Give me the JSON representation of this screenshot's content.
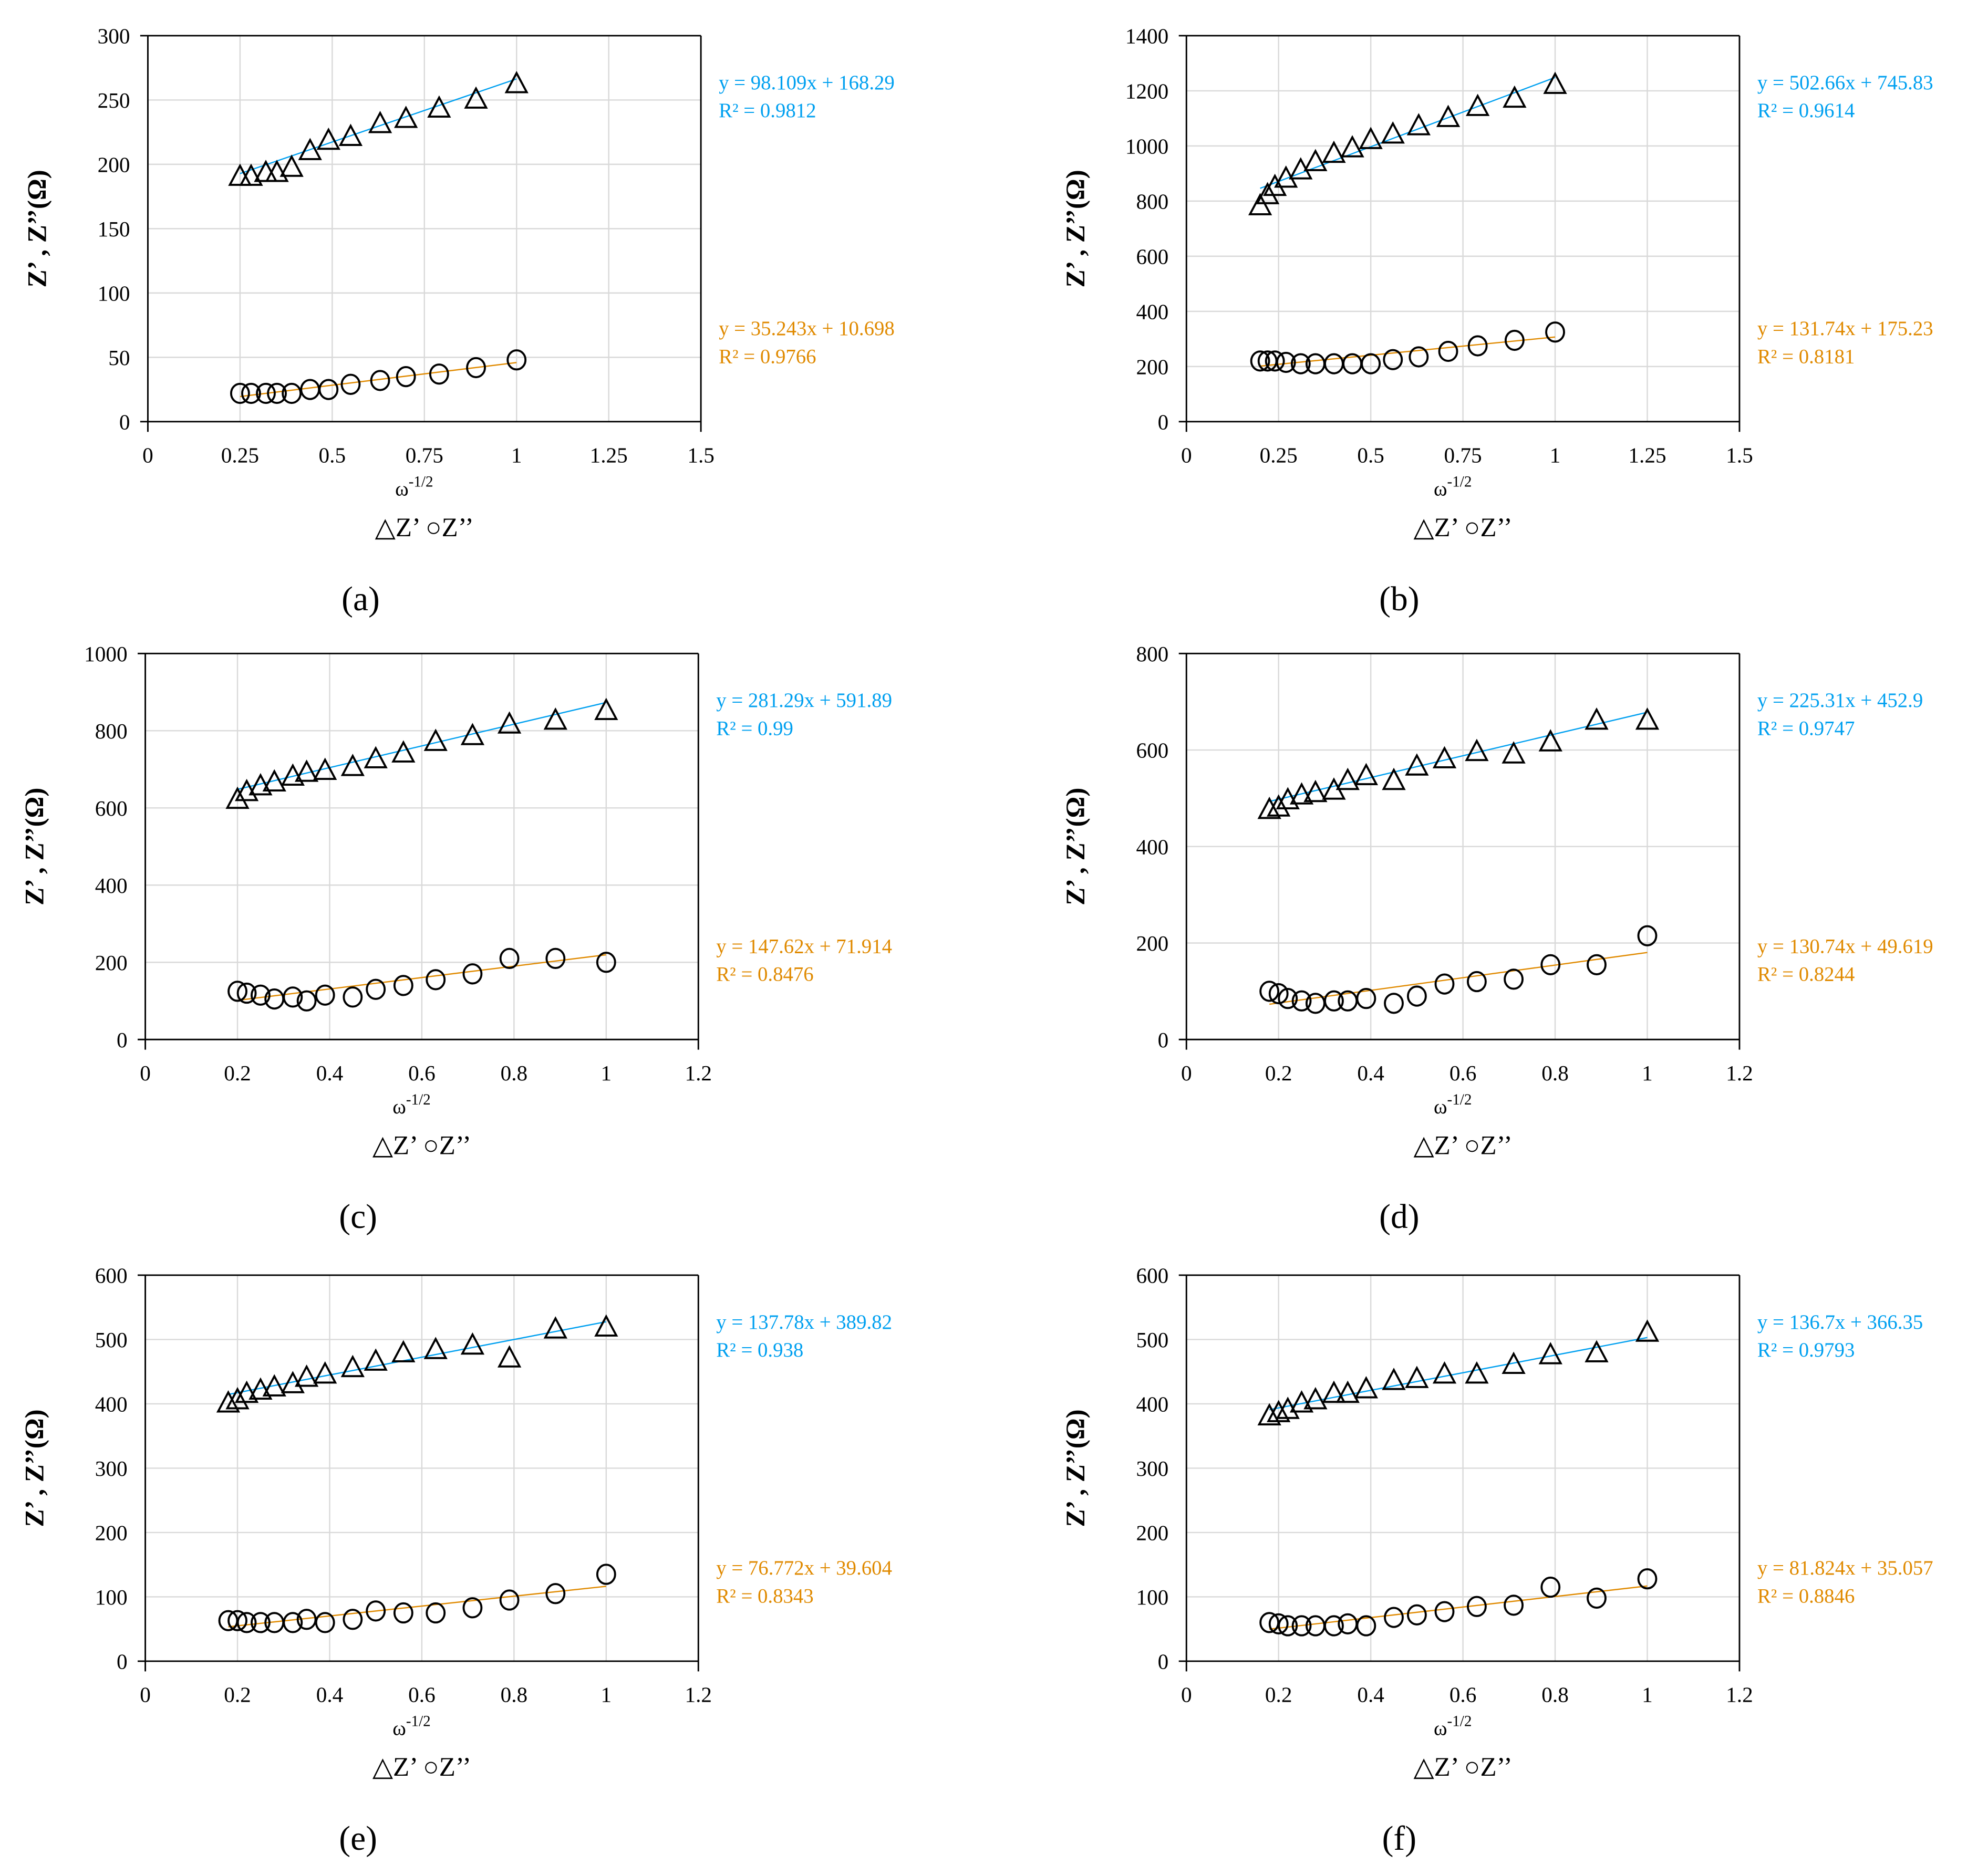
{
  "colors": {
    "fit_zprime": "#00A0F0",
    "fit_zdouble": "#E08A00",
    "grid": "#D9D9D9",
    "marker": "#000000"
  },
  "chart_data": [
    {
      "type": "scatter",
      "panel": "(a)",
      "ylabel": "Z’ , Z’’(Ω)",
      "xlabel": "ω",
      "xlabel_sup": "-1/2",
      "legend": "△Z’ ○Z’’",
      "xlim": [
        0,
        1.5
      ],
      "xticks": [
        "0",
        "0.25",
        "0.5",
        "0.75",
        "1",
        "1.25",
        "1.5"
      ],
      "ylim": [
        0,
        300
      ],
      "yticks": [
        "0",
        "50",
        "100",
        "150",
        "200",
        "250",
        "300"
      ],
      "x": [
        0.25,
        0.28,
        0.32,
        0.35,
        0.39,
        0.44,
        0.49,
        0.55,
        0.63,
        0.7,
        0.79,
        0.89,
        1.0
      ],
      "series": [
        {
          "name": "Z’",
          "marker": "triangle",
          "values": [
            190,
            190,
            193,
            193,
            197,
            210,
            218,
            221,
            231,
            235,
            243,
            250,
            262
          ],
          "fit": {
            "slope": 98.109,
            "intercept": 168.29,
            "eq": "y = 98.109x + 168.29",
            "r2": "R² = 0.9812"
          }
        },
        {
          "name": "Z’’",
          "marker": "circle",
          "values": [
            22,
            22,
            22,
            22,
            22,
            25,
            25,
            29,
            32,
            35,
            37,
            42,
            48
          ],
          "fit": {
            "slope": 35.243,
            "intercept": 10.698,
            "eq": "y = 35.243x + 10.698",
            "r2": "R² = 0.9766"
          }
        }
      ]
    },
    {
      "type": "scatter",
      "panel": "(b)",
      "ylabel": "Z’ , Z’’(Ω)",
      "xlabel": "ω",
      "xlabel_sup": "-1/2",
      "legend": "△Z’ ○Z’’",
      "xlim": [
        0,
        1.5
      ],
      "xticks": [
        "0",
        "0.25",
        "0.5",
        "0.75",
        "1",
        "1.25",
        "1.5"
      ],
      "ylim": [
        0,
        1400
      ],
      "yticks": [
        "0",
        "200",
        "400",
        "600",
        "800",
        "1000",
        "1200",
        "1400"
      ],
      "x": [
        0.2,
        0.22,
        0.24,
        0.27,
        0.31,
        0.35,
        0.4,
        0.45,
        0.5,
        0.56,
        0.63,
        0.71,
        0.79,
        0.89,
        1.0
      ],
      "series": [
        {
          "name": "Z’",
          "marker": "triangle",
          "values": [
            780,
            820,
            850,
            880,
            910,
            940,
            970,
            990,
            1020,
            1040,
            1070,
            1100,
            1140,
            1170,
            1220
          ],
          "fit": {
            "slope": 502.66,
            "intercept": 745.83,
            "eq": "y = 502.66x + 745.83",
            "r2": "R² = 0.9614"
          }
        },
        {
          "name": "Z’’",
          "marker": "circle",
          "values": [
            220,
            220,
            220,
            215,
            210,
            210,
            210,
            210,
            210,
            225,
            235,
            255,
            275,
            295,
            325
          ],
          "fit": {
            "slope": 131.74,
            "intercept": 175.23,
            "eq": "y = 131.74x + 175.23",
            "r2": "R² = 0.8181"
          }
        }
      ]
    },
    {
      "type": "scatter",
      "panel": "(c)",
      "ylabel": "Z’ , Z’’(Ω)",
      "xlabel": "ω",
      "xlabel_sup": "-1/2",
      "legend": "△Z’ ○Z’’",
      "xlim": [
        0,
        1.2
      ],
      "xticks": [
        "0",
        "0.2",
        "0.4",
        "0.6",
        "0.8",
        "1",
        "1.2"
      ],
      "ylim": [
        0,
        1000
      ],
      "yticks": [
        "0",
        "200",
        "400",
        "600",
        "800",
        "1000"
      ],
      "x": [
        0.2,
        0.22,
        0.25,
        0.28,
        0.32,
        0.35,
        0.39,
        0.45,
        0.5,
        0.56,
        0.63,
        0.71,
        0.79,
        0.89,
        1.0
      ],
      "series": [
        {
          "name": "Z’",
          "marker": "triangle",
          "values": [
            620,
            640,
            655,
            665,
            680,
            690,
            695,
            705,
            725,
            740,
            770,
            785,
            815,
            825,
            850
          ],
          "fit": {
            "slope": 281.29,
            "intercept": 591.89,
            "eq": "y = 281.29x + 591.89",
            "r2": "R² = 0.99"
          }
        },
        {
          "name": "Z’’",
          "marker": "circle",
          "values": [
            125,
            120,
            115,
            105,
            110,
            100,
            115,
            110,
            130,
            140,
            155,
            170,
            210,
            210,
            200
          ],
          "fit": {
            "slope": 147.62,
            "intercept": 71.914,
            "eq": "y = 147.62x + 71.914",
            "r2": "R² = 0.8476"
          }
        }
      ]
    },
    {
      "type": "scatter",
      "panel": "(d)",
      "ylabel": "Z’ , Z’’(Ω)",
      "xlabel": "ω",
      "xlabel_sup": "-1/2",
      "legend": "△Z’ ○Z’’",
      "xlim": [
        0,
        1.2
      ],
      "xticks": [
        "0",
        "0.2",
        "0.4",
        "0.6",
        "0.8",
        "1",
        "1.2"
      ],
      "ylim": [
        0,
        800
      ],
      "yticks": [
        "0",
        "200",
        "400",
        "600",
        "800"
      ],
      "x": [
        0.18,
        0.2,
        0.22,
        0.25,
        0.28,
        0.32,
        0.35,
        0.39,
        0.45,
        0.5,
        0.56,
        0.63,
        0.71,
        0.79,
        0.89,
        1.0
      ],
      "series": [
        {
          "name": "Z’",
          "marker": "triangle",
          "values": [
            475,
            480,
            495,
            505,
            510,
            515,
            535,
            545,
            535,
            565,
            580,
            595,
            590,
            615,
            660,
            660
          ],
          "fit": {
            "slope": 225.31,
            "intercept": 452.9,
            "eq": "y = 225.31x + 452.9",
            "r2": "R² = 0.9747"
          }
        },
        {
          "name": "Z’’",
          "marker": "circle",
          "values": [
            100,
            95,
            85,
            80,
            75,
            80,
            80,
            85,
            75,
            90,
            115,
            120,
            125,
            155,
            155,
            215
          ],
          "fit": {
            "slope": 130.74,
            "intercept": 49.619,
            "eq": "y = 130.74x + 49.619",
            "r2": "R² = 0.8244"
          }
        }
      ]
    },
    {
      "type": "scatter",
      "panel": "(e)",
      "ylabel": "Z’ , Z’’(Ω)",
      "xlabel": "ω",
      "xlabel_sup": "-1/2",
      "legend": "△Z’ ○Z’’",
      "xlim": [
        0,
        1.2
      ],
      "xticks": [
        "0",
        "0.2",
        "0.4",
        "0.6",
        "0.8",
        "1",
        "1.2"
      ],
      "ylim": [
        0,
        600
      ],
      "yticks": [
        "0",
        "100",
        "200",
        "300",
        "400",
        "500",
        "600"
      ],
      "x": [
        0.18,
        0.2,
        0.22,
        0.25,
        0.28,
        0.32,
        0.35,
        0.39,
        0.45,
        0.5,
        0.56,
        0.63,
        0.71,
        0.79,
        0.89,
        1.0
      ],
      "series": [
        {
          "name": "Z’",
          "marker": "triangle",
          "values": [
            400,
            405,
            415,
            420,
            425,
            430,
            440,
            445,
            455,
            465,
            478,
            483,
            490,
            470,
            515,
            518
          ],
          "fit": {
            "slope": 137.78,
            "intercept": 389.82,
            "eq": "y = 137.78x + 389.82",
            "r2": "R² = 0.938"
          }
        },
        {
          "name": "Z’’",
          "marker": "circle",
          "values": [
            63,
            63,
            60,
            60,
            60,
            60,
            65,
            60,
            65,
            78,
            75,
            75,
            83,
            95,
            105,
            135
          ],
          "fit": {
            "slope": 76.772,
            "intercept": 39.604,
            "eq": "y = 76.772x + 39.604",
            "r2": "R² = 0.8343"
          }
        }
      ]
    },
    {
      "type": "scatter",
      "panel": "(f)",
      "ylabel": "Z’ , Z’’(Ω)",
      "xlabel": "ω",
      "xlabel_sup": "-1/2",
      "legend": "△Z’ ○Z’’",
      "xlim": [
        0,
        1.2
      ],
      "xticks": [
        "0",
        "0.2",
        "0.4",
        "0.6",
        "0.8",
        "1",
        "1.2"
      ],
      "ylim": [
        0,
        600
      ],
      "yticks": [
        "0",
        "100",
        "200",
        "300",
        "400",
        "500",
        "600"
      ],
      "x": [
        0.18,
        0.2,
        0.22,
        0.25,
        0.28,
        0.32,
        0.35,
        0.39,
        0.45,
        0.5,
        0.56,
        0.63,
        0.71,
        0.79,
        0.89,
        1.0
      ],
      "series": [
        {
          "name": "Z’",
          "marker": "triangle",
          "values": [
            380,
            385,
            390,
            400,
            405,
            415,
            415,
            422,
            435,
            438,
            445,
            445,
            460,
            475,
            478,
            510
          ],
          "fit": {
            "slope": 136.7,
            "intercept": 366.35,
            "eq": "y = 136.7x + 366.35",
            "r2": "R² = 0.9793"
          }
        },
        {
          "name": "Z’’",
          "marker": "circle",
          "values": [
            60,
            58,
            55,
            55,
            55,
            55,
            58,
            55,
            68,
            72,
            77,
            85,
            87,
            115,
            98,
            128
          ],
          "fit": {
            "slope": 81.824,
            "intercept": 35.057,
            "eq": "y = 81.824x + 35.057",
            "r2": "R² = 0.8846"
          }
        }
      ]
    }
  ]
}
